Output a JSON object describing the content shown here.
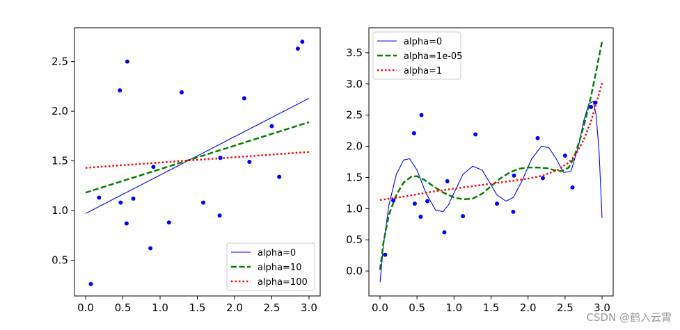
{
  "chart_data": [
    {
      "type": "line",
      "title": "",
      "xlabel": "",
      "ylabel": "",
      "xlim": [
        -0.15,
        3.15
      ],
      "ylim": [
        0.14,
        2.84
      ],
      "xticks": [
        0.0,
        0.5,
        1.0,
        1.5,
        2.0,
        2.5,
        3.0
      ],
      "xtick_labels": [
        "0.0",
        "0.5",
        "1.0",
        "1.5",
        "2.0",
        "2.5",
        "3.0"
      ],
      "yticks": [
        0.5,
        1.0,
        1.5,
        2.0,
        2.5
      ],
      "ytick_labels": [
        "0.5",
        "1.0",
        "1.5",
        "2.0",
        "2.5"
      ],
      "legend_position": "lower-right",
      "scatter": {
        "color": "#0000ff",
        "x": [
          0.07,
          0.18,
          0.46,
          0.47,
          0.55,
          0.56,
          0.64,
          0.87,
          0.91,
          1.12,
          1.29,
          1.58,
          1.8,
          1.81,
          2.13,
          2.2,
          2.5,
          2.6,
          2.85,
          2.91
        ],
        "y": [
          0.26,
          1.13,
          2.21,
          1.08,
          0.87,
          2.5,
          1.12,
          0.62,
          1.44,
          0.88,
          2.19,
          1.08,
          0.95,
          1.53,
          2.13,
          1.49,
          1.85,
          1.34,
          2.63,
          2.7
        ]
      },
      "series": [
        {
          "name": "alpha=0",
          "style": "solid",
          "color": "#0000ff",
          "x": [
            0,
            3
          ],
          "y": [
            0.97,
            2.13
          ]
        },
        {
          "name": "alpha=10",
          "style": "dashed",
          "color": "#008000",
          "x": [
            0,
            3
          ],
          "y": [
            1.18,
            1.89
          ]
        },
        {
          "name": "alpha=100",
          "style": "dotted",
          "color": "#ff0000",
          "x": [
            0,
            3
          ],
          "y": [
            1.43,
            1.59
          ]
        }
      ]
    },
    {
      "type": "line",
      "title": "",
      "xlabel": "",
      "ylabel": "",
      "xlim": [
        -0.15,
        3.15
      ],
      "ylim": [
        -0.4,
        3.9
      ],
      "xticks": [
        0.0,
        0.5,
        1.0,
        1.5,
        2.0,
        2.5,
        3.0
      ],
      "xtick_labels": [
        "0.0",
        "0.5",
        "1.0",
        "1.5",
        "2.0",
        "2.5",
        "3.0"
      ],
      "yticks": [
        0.0,
        0.5,
        1.0,
        1.5,
        2.0,
        2.5,
        3.0,
        3.5
      ],
      "ytick_labels": [
        "0.0",
        "0.5",
        "1.0",
        "1.5",
        "2.0",
        "2.5",
        "3.0",
        "3.5"
      ],
      "legend_position": "upper-left",
      "scatter": {
        "color": "#0000ff",
        "x": [
          0.07,
          0.18,
          0.46,
          0.47,
          0.55,
          0.56,
          0.64,
          0.87,
          0.91,
          1.12,
          1.29,
          1.58,
          1.8,
          1.81,
          2.13,
          2.2,
          2.5,
          2.6,
          2.85,
          2.91
        ],
        "y": [
          0.26,
          1.13,
          2.21,
          1.08,
          0.87,
          2.5,
          1.12,
          0.62,
          1.44,
          0.88,
          2.19,
          1.08,
          0.95,
          1.53,
          2.13,
          1.49,
          1.85,
          1.34,
          2.63,
          2.7
        ]
      },
      "series": [
        {
          "name": "alpha=0",
          "style": "solid",
          "color": "#0000ff",
          "x": [
            0,
            0.05,
            0.12,
            0.22,
            0.32,
            0.4,
            0.5,
            0.62,
            0.75,
            0.85,
            0.92,
            1.0,
            1.12,
            1.25,
            1.38,
            1.48,
            1.58,
            1.7,
            1.8,
            1.92,
            2.05,
            2.18,
            2.28,
            2.38,
            2.48,
            2.58,
            2.68,
            2.75,
            2.82,
            2.88,
            2.92,
            2.96,
            3.0
          ],
          "y": [
            -0.18,
            0.45,
            1.05,
            1.55,
            1.78,
            1.8,
            1.62,
            1.25,
            0.98,
            0.95,
            1.05,
            1.25,
            1.55,
            1.68,
            1.62,
            1.42,
            1.22,
            1.12,
            1.18,
            1.45,
            1.8,
            2.0,
            1.98,
            1.8,
            1.58,
            1.6,
            2.0,
            2.4,
            2.68,
            2.72,
            2.5,
            1.9,
            0.85
          ]
        },
        {
          "name": "alpha=1e-05",
          "style": "dashed",
          "color": "#008000",
          "x": [
            0,
            0.05,
            0.12,
            0.22,
            0.32,
            0.42,
            0.5,
            0.6,
            0.72,
            0.85,
            1.0,
            1.12,
            1.25,
            1.38,
            1.5,
            1.62,
            1.75,
            1.88,
            2.0,
            2.12,
            2.25,
            2.35,
            2.45,
            2.55,
            2.62,
            2.7,
            2.78,
            2.85,
            2.92,
            3.0
          ],
          "y": [
            0.02,
            0.48,
            0.9,
            1.22,
            1.42,
            1.51,
            1.52,
            1.46,
            1.36,
            1.26,
            1.18,
            1.15,
            1.16,
            1.24,
            1.36,
            1.48,
            1.58,
            1.64,
            1.66,
            1.66,
            1.65,
            1.62,
            1.6,
            1.66,
            1.82,
            2.1,
            2.45,
            2.8,
            3.2,
            3.68
          ]
        },
        {
          "name": "alpha=1",
          "style": "dotted",
          "color": "#ff0000",
          "x": [
            0,
            0.25,
            0.5,
            0.75,
            1.0,
            1.25,
            1.5,
            1.75,
            2.0,
            2.2,
            2.4,
            2.55,
            2.65,
            2.75,
            2.85,
            2.93,
            3.0
          ],
          "y": [
            1.14,
            1.18,
            1.23,
            1.28,
            1.32,
            1.36,
            1.4,
            1.44,
            1.48,
            1.53,
            1.62,
            1.74,
            1.88,
            2.1,
            2.4,
            2.72,
            3.02
          ]
        }
      ]
    }
  ],
  "watermark": "CSDN @鹤入云霄"
}
